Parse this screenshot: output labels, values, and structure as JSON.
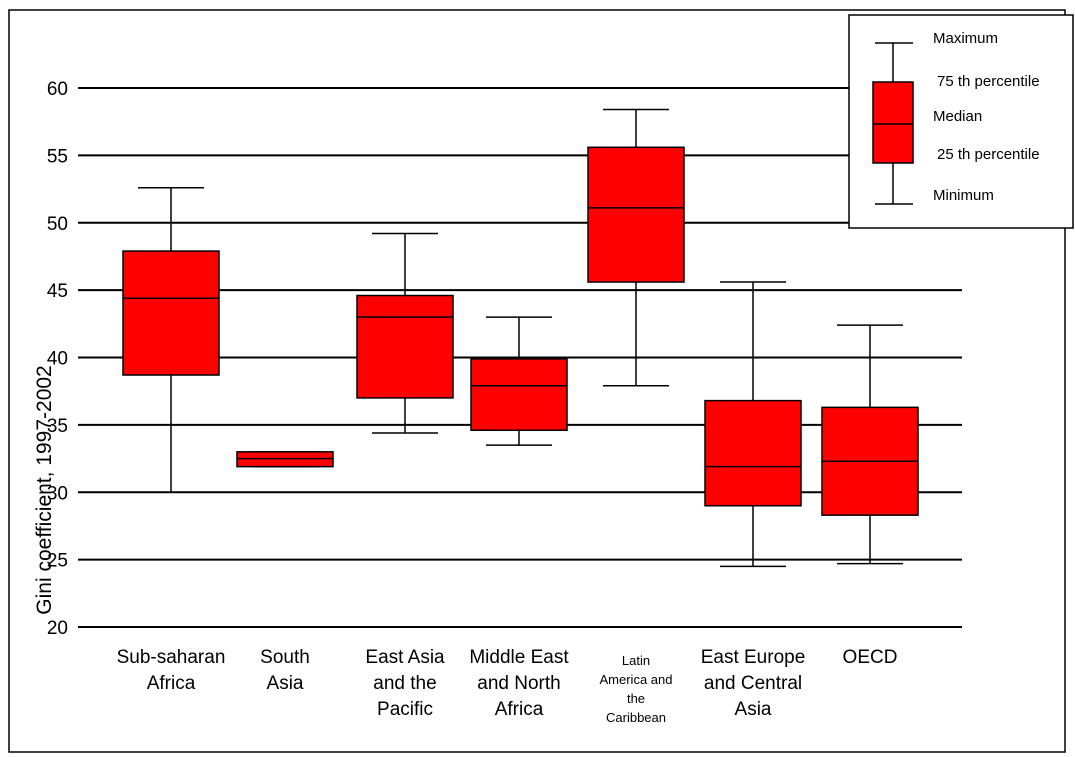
{
  "chart_data": {
    "type": "box",
    "title": "",
    "ylabel": "Gini coefficient, 1997-2002",
    "xlabel": "",
    "ylim": [
      20,
      60
    ],
    "yticks": [
      20,
      25,
      30,
      35,
      40,
      45,
      50,
      55,
      60
    ],
    "grid": true,
    "legend_position": "top-right",
    "colors": {
      "box_fill": "#ff0000",
      "stroke": "#000000",
      "grid": "#000000"
    },
    "legend": {
      "maximum": "Maximum",
      "p75": "75 th percentile",
      "median": "Median",
      "p25": "25 th percentile",
      "minimum": "Minimum"
    },
    "categories": [
      {
        "label": [
          "Sub-saharan",
          "Africa"
        ],
        "min": 30.0,
        "q1": 38.7,
        "median": 44.4,
        "q3": 47.9,
        "max": 52.6
      },
      {
        "label": [
          "South",
          "Asia"
        ],
        "min": 31.9,
        "q1": 31.9,
        "median": 32.5,
        "q3": 33.0,
        "max": 33.0
      },
      {
        "label": [
          "East Asia",
          "and the",
          "Pacific"
        ],
        "min": 34.4,
        "q1": 37.0,
        "median": 43.0,
        "q3": 44.6,
        "max": 49.2
      },
      {
        "label": [
          "Middle East",
          "and North",
          "Africa"
        ],
        "min": 33.5,
        "q1": 34.6,
        "median": 37.9,
        "q3": 39.9,
        "max": 43.0
      },
      {
        "label": [
          "Latin",
          "America and",
          "the",
          "Caribbean"
        ],
        "small": true,
        "min": 37.9,
        "q1": 45.6,
        "median": 51.1,
        "q3": 55.6,
        "max": 58.4
      },
      {
        "label": [
          "East Europe",
          "and Central",
          "Asia"
        ],
        "min": 24.5,
        "q1": 29.0,
        "median": 31.9,
        "q3": 36.8,
        "max": 45.6
      },
      {
        "label": [
          "OECD"
        ],
        "min": 24.7,
        "q1": 28.3,
        "median": 32.3,
        "q3": 36.3,
        "max": 42.4
      }
    ]
  }
}
